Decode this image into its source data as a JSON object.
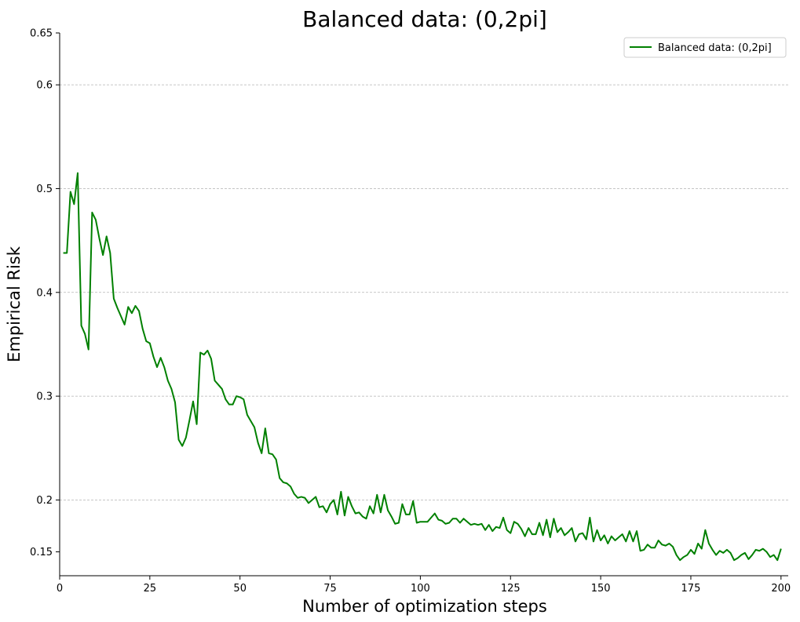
{
  "chart_data": {
    "type": "line",
    "title": "Balanced data: (0,2pi]",
    "xlabel": "Number of optimization steps",
    "ylabel": "Empirical Risk",
    "xlim": [
      0,
      202
    ],
    "ylim": [
      0.127,
      0.65
    ],
    "x_ticks": [
      0,
      25,
      50,
      75,
      100,
      125,
      150,
      175,
      200
    ],
    "x_tick_labels": [
      "0",
      "25",
      "50",
      "75",
      "100",
      "125",
      "150",
      "175",
      "200"
    ],
    "y_ticks": [
      0.15,
      0.2,
      0.3,
      0.4,
      0.5,
      0.6,
      0.65
    ],
    "y_tick_labels": [
      "0.15",
      "0.2",
      "0.3",
      "0.4",
      "0.5",
      "0.6",
      "0.65"
    ],
    "grid": "horizontal dashed",
    "legend_position": "top-right",
    "series": [
      {
        "name": "Balanced data: (0,2pi]",
        "color": "#008000",
        "x": [
          1,
          2,
          3,
          4,
          5,
          6,
          7,
          8,
          9,
          10,
          11,
          12,
          13,
          14,
          15,
          16,
          17,
          18,
          19,
          20,
          21,
          22,
          23,
          24,
          25,
          26,
          27,
          28,
          29,
          30,
          31,
          32,
          33,
          34,
          35,
          36,
          37,
          38,
          39,
          40,
          41,
          42,
          43,
          44,
          45,
          46,
          47,
          48,
          49,
          50,
          51,
          52,
          53,
          54,
          55,
          56,
          57,
          58,
          59,
          60,
          61,
          62,
          63,
          64,
          65,
          66,
          67,
          68,
          69,
          70,
          71,
          72,
          73,
          74,
          75,
          76,
          77,
          78,
          79,
          80,
          81,
          82,
          83,
          84,
          85,
          86,
          87,
          88,
          89,
          90,
          91,
          92,
          93,
          94,
          95,
          96,
          97,
          98,
          99,
          100,
          101,
          102,
          103,
          104,
          105,
          106,
          107,
          108,
          109,
          110,
          111,
          112,
          113,
          114,
          115,
          116,
          117,
          118,
          119,
          120,
          121,
          122,
          123,
          124,
          125,
          126,
          127,
          128,
          129,
          130,
          131,
          132,
          133,
          134,
          135,
          136,
          137,
          138,
          139,
          140,
          141,
          142,
          143,
          144,
          145,
          146,
          147,
          148,
          149,
          150,
          151,
          152,
          153,
          154,
          155,
          156,
          157,
          158,
          159,
          160,
          161,
          162,
          163,
          164,
          165,
          166,
          167,
          168,
          169,
          170,
          171,
          172,
          173,
          174,
          175,
          176,
          177,
          178,
          179,
          180,
          181,
          182,
          183,
          184,
          185,
          186,
          187,
          188,
          189,
          190,
          191,
          192,
          193,
          194,
          195,
          196,
          197,
          198,
          199,
          200
        ],
        "y": [
          0.438,
          0.438,
          0.497,
          0.485,
          0.515,
          0.368,
          0.36,
          0.345,
          0.477,
          0.47,
          0.452,
          0.436,
          0.454,
          0.438,
          0.394,
          0.385,
          0.377,
          0.369,
          0.386,
          0.38,
          0.387,
          0.382,
          0.365,
          0.353,
          0.351,
          0.338,
          0.328,
          0.337,
          0.328,
          0.315,
          0.307,
          0.294,
          0.258,
          0.252,
          0.26,
          0.277,
          0.295,
          0.273,
          0.342,
          0.34,
          0.344,
          0.336,
          0.315,
          0.311,
          0.307,
          0.297,
          0.292,
          0.292,
          0.3,
          0.299,
          0.297,
          0.282,
          0.276,
          0.27,
          0.255,
          0.245,
          0.269,
          0.245,
          0.244,
          0.239,
          0.221,
          0.217,
          0.216,
          0.213,
          0.206,
          0.202,
          0.203,
          0.202,
          0.197,
          0.2,
          0.203,
          0.193,
          0.194,
          0.188,
          0.196,
          0.2,
          0.186,
          0.208,
          0.185,
          0.203,
          0.194,
          0.187,
          0.188,
          0.184,
          0.182,
          0.194,
          0.187,
          0.205,
          0.188,
          0.205,
          0.19,
          0.184,
          0.177,
          0.178,
          0.196,
          0.186,
          0.186,
          0.199,
          0.178,
          0.179,
          0.179,
          0.179,
          0.183,
          0.187,
          0.181,
          0.18,
          0.177,
          0.178,
          0.182,
          0.182,
          0.178,
          0.182,
          0.179,
          0.176,
          0.177,
          0.176,
          0.177,
          0.171,
          0.176,
          0.17,
          0.174,
          0.173,
          0.183,
          0.171,
          0.168,
          0.179,
          0.177,
          0.172,
          0.165,
          0.173,
          0.167,
          0.167,
          0.178,
          0.166,
          0.181,
          0.164,
          0.182,
          0.169,
          0.173,
          0.166,
          0.169,
          0.173,
          0.16,
          0.167,
          0.168,
          0.162,
          0.183,
          0.16,
          0.171,
          0.161,
          0.166,
          0.158,
          0.165,
          0.161,
          0.164,
          0.167,
          0.16,
          0.17,
          0.16,
          0.17,
          0.151,
          0.152,
          0.157,
          0.154,
          0.154,
          0.161,
          0.157,
          0.156,
          0.158,
          0.155,
          0.147,
          0.142,
          0.145,
          0.147,
          0.152,
          0.148,
          0.158,
          0.153,
          0.171,
          0.158,
          0.152,
          0.147,
          0.151,
          0.149,
          0.152,
          0.149,
          0.142,
          0.144,
          0.147,
          0.149,
          0.143,
          0.147,
          0.152,
          0.151,
          0.153,
          0.15,
          0.145,
          0.147,
          0.142,
          0.153
        ]
      }
    ]
  }
}
